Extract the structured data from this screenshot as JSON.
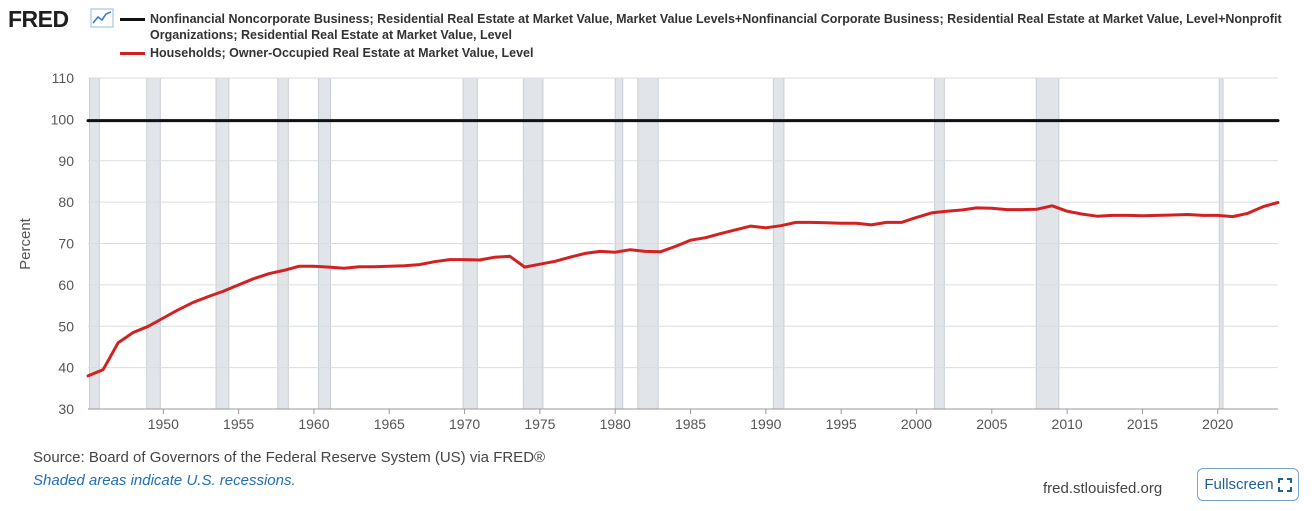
{
  "logo": {
    "text": "FRED"
  },
  "legend": [
    {
      "label": "Nonfinancial Noncorporate Business; Residential Real Estate at Market Value, Market Value Levels+Nonfinancial Corporate Business; Residential Real Estate at Market Value, Level+Nonprofit Organizations; Residential Real Estate at Market Value, Level",
      "color": "#111111"
    },
    {
      "label": "Households; Owner-Occupied Real Estate at Market Value, Level",
      "color": "#d32121"
    }
  ],
  "chart_data": {
    "type": "line",
    "title": "",
    "xlabel": "",
    "ylabel": "Percent",
    "xlim": [
      1945,
      2024
    ],
    "ylim": [
      30,
      110
    ],
    "yticks": [
      30,
      40,
      50,
      60,
      70,
      80,
      90,
      100,
      110
    ],
    "xticks": [
      1950,
      1955,
      1960,
      1965,
      1970,
      1975,
      1980,
      1985,
      1990,
      1995,
      2000,
      2005,
      2010,
      2015,
      2020
    ],
    "grid": true,
    "recessions": [
      [
        1945.1,
        1945.75
      ],
      [
        1948.9,
        1949.8
      ],
      [
        1953.5,
        1954.35
      ],
      [
        1957.6,
        1958.3
      ],
      [
        1960.3,
        1961.1
      ],
      [
        1969.9,
        1970.85
      ],
      [
        1973.9,
        1975.2
      ],
      [
        1980.0,
        1980.5
      ],
      [
        1981.5,
        1982.85
      ],
      [
        1990.5,
        1991.2
      ],
      [
        2001.2,
        2001.85
      ],
      [
        2007.95,
        2009.45
      ],
      [
        2020.1,
        2020.35
      ]
    ],
    "series": [
      {
        "name": "Nonfinancial Noncorporate Business; Residential Real Estate at Market Value, Market Value Levels+Nonfinancial Corporate Business; Residential Real Estate at Market Value, Level+Nonprofit Organizations; Residential Real Estate at Market Value, Level",
        "color": "#111111",
        "x": [
          1945,
          2024
        ],
        "y": [
          99.7,
          99.7
        ]
      },
      {
        "name": "Households; Owner-Occupied Real Estate at Market Value, Level",
        "color": "#d32121",
        "x": [
          1945,
          1946,
          1947,
          1948,
          1949,
          1950,
          1951,
          1952,
          1953,
          1954,
          1955,
          1956,
          1957,
          1958,
          1959,
          1960,
          1961,
          1962,
          1963,
          1964,
          1965,
          1966,
          1967,
          1968,
          1969,
          1970,
          1971,
          1972,
          1973,
          1974,
          1975,
          1976,
          1977,
          1978,
          1979,
          1980,
          1981,
          1982,
          1983,
          1984,
          1985,
          1986,
          1987,
          1988,
          1989,
          1990,
          1991,
          1992,
          1993,
          1994,
          1995,
          1996,
          1997,
          1998,
          1999,
          2000,
          2001,
          2002,
          2003,
          2004,
          2005,
          2006,
          2007,
          2008,
          2009,
          2010,
          2011,
          2012,
          2013,
          2014,
          2015,
          2016,
          2017,
          2018,
          2019,
          2020,
          2021,
          2022,
          2023,
          2024
        ],
        "y": [
          38.0,
          39.5,
          46.0,
          48.5,
          50.0,
          52.0,
          54.0,
          55.8,
          57.2,
          58.5,
          60.0,
          61.5,
          62.7,
          63.5,
          64.5,
          64.5,
          64.3,
          64.0,
          64.4,
          64.4,
          64.5,
          64.6,
          64.9,
          65.6,
          66.1,
          66.1,
          66.0,
          66.7,
          66.9,
          64.3,
          65.0,
          65.7,
          66.7,
          67.6,
          68.1,
          67.9,
          68.5,
          68.1,
          68.0,
          69.3,
          70.8,
          71.4,
          72.4,
          73.3,
          74.2,
          73.8,
          74.3,
          75.1,
          75.1,
          75.0,
          74.9,
          74.9,
          74.5,
          75.1,
          75.1,
          76.3,
          77.4,
          77.8,
          78.1,
          78.6,
          78.5,
          78.2,
          78.2,
          78.3,
          79.1,
          77.8,
          77.1,
          76.6,
          76.8,
          76.8,
          76.7,
          76.8,
          76.9,
          77.0,
          76.8,
          76.8,
          76.5,
          77.3,
          78.9,
          79.9
        ]
      }
    ]
  },
  "footer": {
    "source": "Source: Board of Governors of the Federal Reserve System (US) via FRED®",
    "recession_note": "Shaded areas indicate U.S. recessions.",
    "site": "fred.stlouisfed.org",
    "fullscreen_label": "Fullscreen"
  }
}
